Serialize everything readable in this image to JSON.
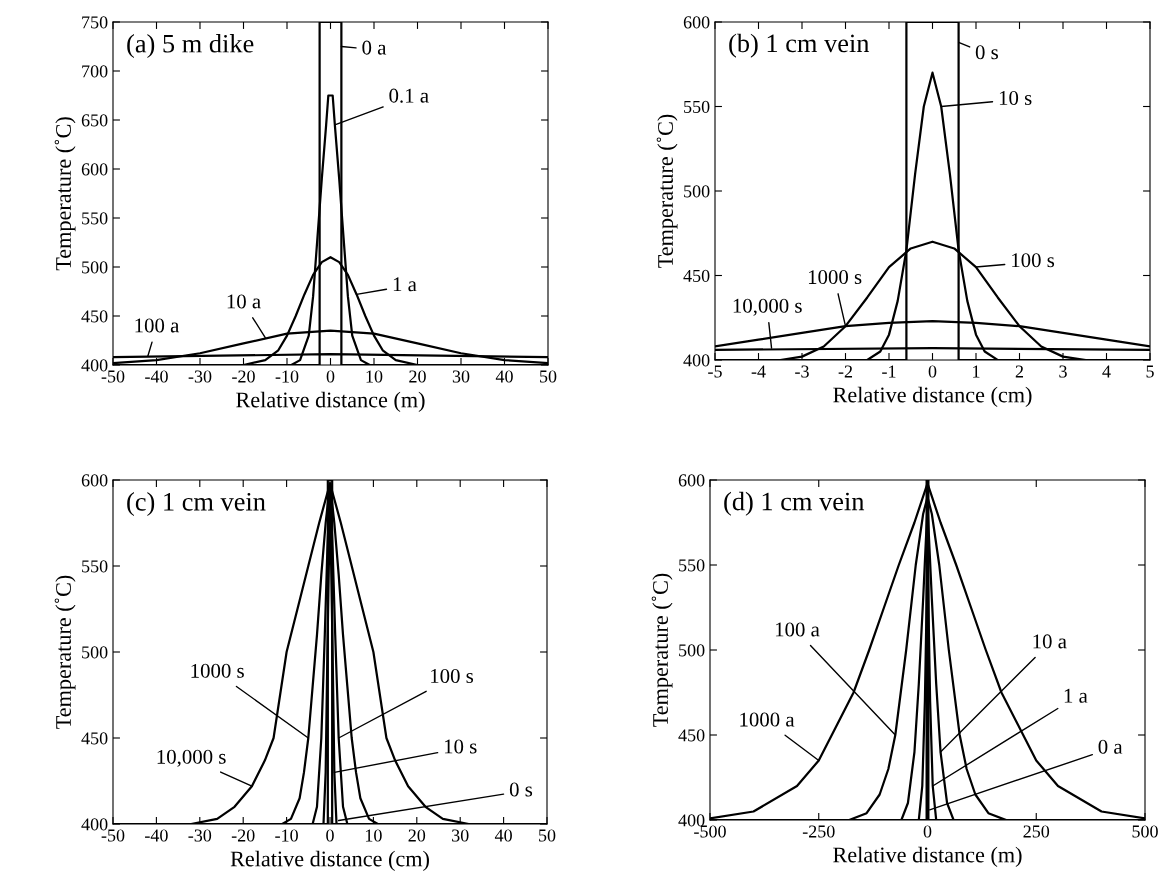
{
  "chart_data": [
    {
      "type": "line",
      "title": "(a) 5 m dike",
      "xlabel": "Relative distance (m)",
      "ylabel": "Temperature (˚C)",
      "xlim": [
        -50,
        50
      ],
      "ylim": [
        400,
        750
      ],
      "xticks": [
        -50,
        -40,
        -30,
        -20,
        -10,
        0,
        10,
        20,
        30,
        40,
        50
      ],
      "yticks": [
        400,
        450,
        500,
        550,
        600,
        650,
        700,
        750
      ],
      "series": [
        {
          "color": "#000000",
          "x": [
            -50,
            -2.5,
            -2.5,
            2.5,
            2.5,
            50
          ],
          "values": [
            400,
            400,
            750,
            750,
            400,
            400
          ]
        },
        {
          "color": "#000000",
          "x": [
            -9,
            -7,
            -5,
            -4,
            -3,
            -2,
            -1,
            -0.5,
            0.5,
            1,
            2,
            3,
            4,
            5,
            7,
            9
          ],
          "values": [
            400,
            405,
            430,
            470,
            530,
            590,
            645,
            675,
            675,
            645,
            590,
            530,
            470,
            430,
            405,
            400
          ]
        },
        {
          "color": "#000000",
          "x": [
            -20,
            -15,
            -12,
            -10,
            -8,
            -6,
            -4,
            -2,
            0,
            2,
            4,
            6,
            8,
            10,
            12,
            15,
            20
          ],
          "values": [
            400,
            405,
            415,
            430,
            450,
            472,
            492,
            505,
            510,
            505,
            492,
            472,
            450,
            430,
            415,
            405,
            400
          ]
        },
        {
          "color": "#000000",
          "x": [
            -50,
            -40,
            -30,
            -20,
            -10,
            0,
            10,
            20,
            30,
            40,
            50
          ],
          "values": [
            402,
            405,
            412,
            422,
            432,
            435,
            432,
            422,
            412,
            405,
            402
          ]
        },
        {
          "color": "#000000",
          "x": [
            -50,
            0,
            50
          ],
          "values": [
            408,
            411,
            408
          ]
        }
      ],
      "annotations": [
        {
          "text": "0 a",
          "x": 2.5,
          "y": 725
        },
        {
          "text": "0.1 a",
          "x": 1,
          "y": 645
        },
        {
          "text": "1 a",
          "x": 6,
          "y": 472
        },
        {
          "text": "10 a",
          "x": -15,
          "y": 428
        },
        {
          "text": "100 a",
          "x": -42,
          "y": 409
        }
      ]
    },
    {
      "type": "line",
      "title": "(b) 1 cm vein",
      "xlabel": "Relative distance (cm)",
      "ylabel": "Temperature (˚C)",
      "xlim": [
        -5,
        5
      ],
      "ylim": [
        400,
        600
      ],
      "xticks": [
        -5,
        -4,
        -3,
        -2,
        -1,
        0,
        1,
        2,
        3,
        4,
        5
      ],
      "yticks": [
        400,
        450,
        500,
        550,
        600
      ],
      "series": [
        {
          "color": "#000000",
          "x": [
            -5,
            -0.6,
            -0.6,
            0.6,
            0.6,
            5
          ],
          "values": [
            400,
            400,
            600,
            600,
            400,
            400
          ]
        },
        {
          "color": "#000000",
          "x": [
            -1.5,
            -1.2,
            -1,
            -0.8,
            -0.6,
            -0.4,
            -0.2,
            0,
            0.2,
            0.4,
            0.6,
            0.8,
            1,
            1.2,
            1.5
          ],
          "values": [
            400,
            405,
            415,
            435,
            465,
            510,
            550,
            570,
            550,
            510,
            465,
            435,
            415,
            405,
            400
          ]
        },
        {
          "color": "#000000",
          "x": [
            -3.5,
            -3,
            -2.5,
            -2,
            -1.5,
            -1,
            -0.5,
            0,
            0.5,
            1,
            1.5,
            2,
            2.5,
            3,
            3.5
          ],
          "values": [
            400,
            402,
            408,
            420,
            437,
            455,
            466,
            470,
            466,
            455,
            437,
            420,
            408,
            402,
            400
          ]
        },
        {
          "color": "#000000",
          "x": [
            -5,
            -4,
            -3,
            -2,
            -1,
            0,
            1,
            2,
            3,
            4,
            5
          ],
          "values": [
            408,
            412,
            416,
            420,
            422,
            423,
            422,
            420,
            416,
            412,
            408
          ]
        },
        {
          "color": "#000000",
          "x": [
            -5,
            0,
            5
          ],
          "values": [
            406,
            407,
            406
          ]
        }
      ],
      "annotations": [
        {
          "text": "0 s",
          "x": 0.6,
          "y": 588
        },
        {
          "text": "10 s",
          "x": 0.2,
          "y": 550
        },
        {
          "text": "100 s",
          "x": 1,
          "y": 455
        },
        {
          "text": "1000 s",
          "x": -2,
          "y": 420
        },
        {
          "text": "10,000 s",
          "x": -3.7,
          "y": 407
        }
      ]
    },
    {
      "type": "line",
      "title": "(c) 1 cm vein",
      "xlabel": "Relative distance (cm)",
      "ylabel": "Temperature (˚C)",
      "xlim": [
        -50,
        50
      ],
      "ylim": [
        400,
        600
      ],
      "xticks": [
        -50,
        -40,
        -30,
        -20,
        -10,
        0,
        10,
        20,
        30,
        40,
        50
      ],
      "yticks": [
        400,
        450,
        500,
        550,
        600
      ],
      "series": [
        {
          "color": "#000000",
          "x": [
            -50,
            -0.5,
            -0.5,
            0.5,
            0.5,
            50
          ],
          "values": [
            400,
            400,
            600,
            600,
            400,
            400
          ]
        },
        {
          "color": "#000000",
          "x": [
            -1.5,
            -1,
            -0.6,
            0,
            0.6,
            1,
            1.5
          ],
          "values": [
            400,
            430,
            500,
            590,
            500,
            430,
            400
          ]
        },
        {
          "color": "#000000",
          "x": [
            -4,
            -3,
            -2,
            -1.2,
            -0.6,
            0,
            0.6,
            1.2,
            2,
            3,
            4
          ],
          "values": [
            400,
            410,
            450,
            510,
            560,
            595,
            560,
            510,
            450,
            410,
            400
          ]
        },
        {
          "color": "#000000",
          "x": [
            -11,
            -9,
            -7,
            -6,
            -5,
            -4,
            -3,
            -2,
            -1,
            0,
            1,
            2,
            3,
            4,
            5,
            6,
            7,
            9,
            11
          ],
          "values": [
            400,
            403,
            415,
            430,
            450,
            480,
            510,
            545,
            575,
            598,
            575,
            545,
            510,
            480,
            450,
            430,
            415,
            403,
            400
          ]
        },
        {
          "color": "#000000",
          "x": [
            -32,
            -26,
            -22,
            -18,
            -15,
            -13,
            -10,
            -7,
            -5,
            -2.5,
            0,
            2.5,
            5,
            7,
            10,
            13,
            15,
            18,
            22,
            26,
            32
          ],
          "values": [
            400,
            403,
            410,
            422,
            437,
            450,
            500,
            530,
            550,
            575,
            598,
            575,
            550,
            530,
            500,
            450,
            437,
            422,
            410,
            403,
            400
          ]
        }
      ],
      "annotations": [
        {
          "text": "0 s",
          "x": 2,
          "y": 402
        },
        {
          "text": "10 s",
          "x": 1,
          "y": 430
        },
        {
          "text": "100 s",
          "x": 2,
          "y": 450
        },
        {
          "text": "1000 s",
          "x": -5,
          "y": 450
        },
        {
          "text": "10,000 s",
          "x": -18,
          "y": 422
        }
      ]
    },
    {
      "type": "line",
      "title": "(d) 1 cm vein",
      "xlabel": "Relative distance (m)",
      "ylabel": "Temperature (˚C)",
      "xlim": [
        -500,
        500
      ],
      "ylim": [
        400,
        600
      ],
      "xticks": [
        -500,
        -250,
        0,
        250,
        500
      ],
      "yticks": [
        400,
        450,
        500,
        550,
        600
      ],
      "series": [
        {
          "color": "#000000",
          "x": [
            -500,
            -2,
            -2,
            2,
            2,
            500
          ],
          "values": [
            400,
            400,
            600,
            600,
            400,
            400
          ]
        },
        {
          "color": "#000000",
          "x": [
            -20,
            -12,
            -6,
            0,
            6,
            12,
            20
          ],
          "values": [
            400,
            420,
            470,
            558,
            470,
            420,
            400
          ]
        },
        {
          "color": "#000000",
          "x": [
            -60,
            -45,
            -30,
            -20,
            -10,
            0,
            10,
            20,
            30,
            45,
            60
          ],
          "values": [
            400,
            410,
            440,
            480,
            530,
            585,
            530,
            480,
            440,
            410,
            400
          ]
        },
        {
          "color": "#000000",
          "x": [
            -180,
            -140,
            -110,
            -90,
            -74,
            -49,
            -27,
            -10,
            0,
            10,
            27,
            49,
            74,
            90,
            110,
            140,
            180
          ],
          "values": [
            400,
            404,
            415,
            430,
            450,
            500,
            550,
            580,
            590,
            580,
            550,
            500,
            450,
            430,
            415,
            404,
            400
          ]
        },
        {
          "color": "#000000",
          "x": [
            -500,
            -400,
            -300,
            -250,
            -220,
            -170,
            -134,
            -100,
            -66,
            -30,
            0,
            30,
            66,
            100,
            134,
            170,
            220,
            250,
            300,
            400,
            500
          ],
          "values": [
            401,
            405,
            420,
            435,
            450,
            475,
            500,
            525,
            550,
            575,
            598,
            575,
            550,
            525,
            500,
            475,
            450,
            435,
            420,
            405,
            401
          ]
        }
      ],
      "annotations": [
        {
          "text": "0 a",
          "x": 5,
          "y": 406
        },
        {
          "text": "1 a",
          "x": 12,
          "y": 420
        },
        {
          "text": "10 a",
          "x": 30,
          "y": 440
        },
        {
          "text": "100 a",
          "x": -74,
          "y": 450
        },
        {
          "text": "1000 a",
          "x": -250,
          "y": 435
        }
      ]
    }
  ]
}
